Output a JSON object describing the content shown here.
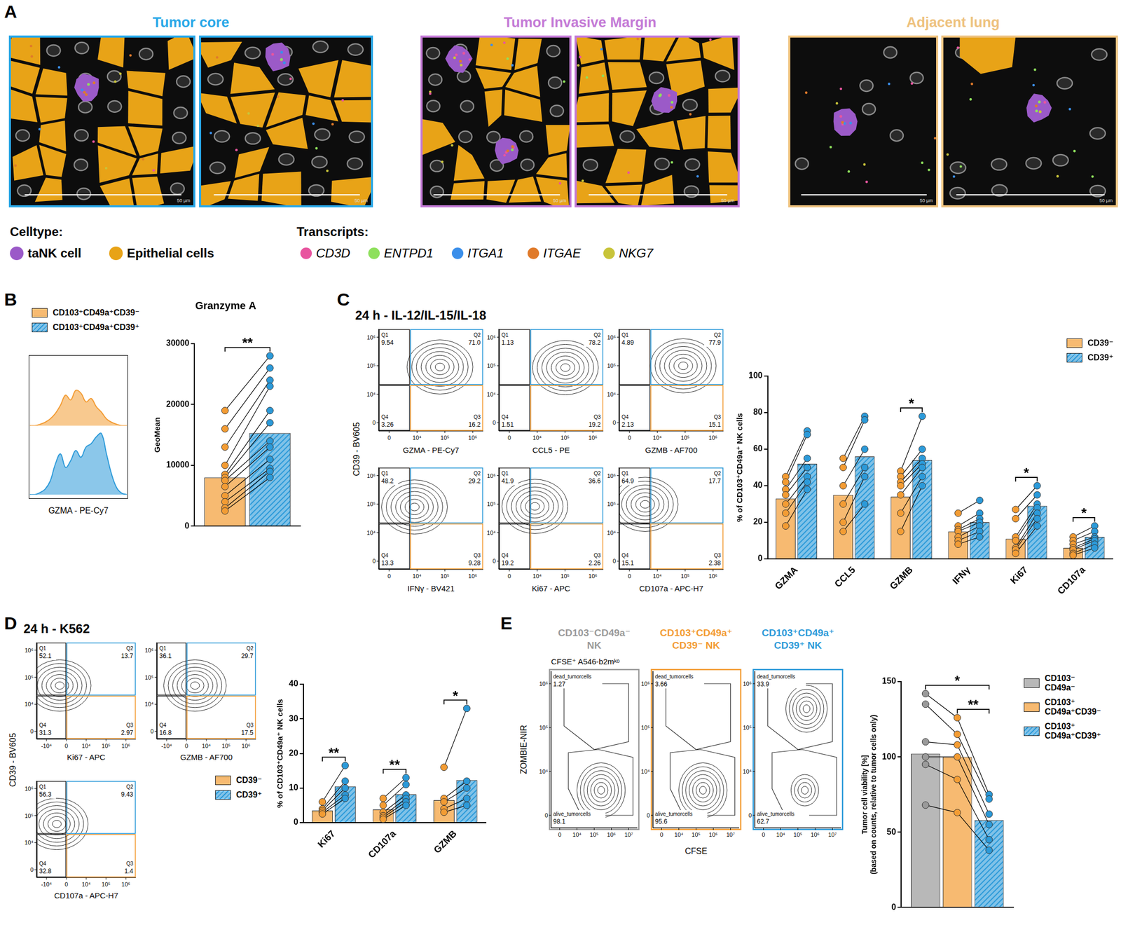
{
  "figure": {
    "A": {
      "regions": [
        {
          "title": "Tumor core",
          "color": "#29A8E8"
        },
        {
          "title": "Tumor Invasive Margin",
          "color": "#C47AD6"
        },
        {
          "title": "Adjacent lung",
          "color": "#EEC27E"
        }
      ],
      "scale_bar": "50 µm",
      "celltype_heading": "Celltype:",
      "celltypes": [
        {
          "name": "taNK cell",
          "color": "#9B5AC8"
        },
        {
          "name": "Epithelial cells",
          "color": "#E8A317"
        }
      ],
      "transcript_heading": "Transcripts:",
      "transcripts": [
        {
          "name": "CD3D",
          "color": "#E8559F"
        },
        {
          "name": "ENTPD1",
          "color": "#8EE05C"
        },
        {
          "name": "ITGA1",
          "color": "#3B8FEA"
        },
        {
          "name": "ITGAE",
          "color": "#E07A2A"
        },
        {
          "name": "NKG7",
          "color": "#C8C43A"
        }
      ]
    },
    "B": {},
    "C": {
      "heading": "24 h - IL-12/IL-15/IL-18",
      "ylabel": "CD39 - BV605",
      "xticks": [
        "0",
        "10⁴",
        "10⁵",
        "10⁶"
      ],
      "yticks": [
        "10⁶",
        "10⁵",
        "10⁴",
        "0"
      ],
      "plots": [
        {
          "xlabel": "GZMA - PE-Cy7",
          "quadrants": [
            {
              "label": "Q1",
              "value": "9.54"
            },
            {
              "label": "Q2",
              "value": "71.0"
            },
            {
              "label": "Q3",
              "value": "16.2"
            },
            {
              "label": "Q4",
              "value": "3.26"
            }
          ]
        },
        {
          "xlabel": "CCL5 - PE",
          "quadrants": [
            {
              "label": "Q1",
              "value": "1.13"
            },
            {
              "label": "Q2",
              "value": "78.2"
            },
            {
              "label": "Q3",
              "value": "19.2"
            },
            {
              "label": "Q4",
              "value": "1.51"
            }
          ]
        },
        {
          "xlabel": "GZMB - AF700",
          "quadrants": [
            {
              "label": "Q1",
              "value": "4.89"
            },
            {
              "label": "Q2",
              "value": "77.9"
            },
            {
              "label": "Q3",
              "value": "15.1"
            },
            {
              "label": "Q4",
              "value": "2.13"
            }
          ]
        },
        {
          "xlabel": "IFNγ - BV421",
          "quadrants": [
            {
              "label": "Q1",
              "value": "48.2"
            },
            {
              "label": "Q2",
              "value": "29.2"
            },
            {
              "label": "Q3",
              "value": "9.28"
            },
            {
              "label": "Q4",
              "value": "13.3"
            }
          ]
        },
        {
          "xlabel": "Ki67 - APC",
          "quadrants": [
            {
              "label": "Q1",
              "value": "41.9"
            },
            {
              "label": "Q2",
              "value": "36.6"
            },
            {
              "label": "Q3",
              "value": "2.26"
            },
            {
              "label": "Q4",
              "value": "19.2"
            }
          ]
        },
        {
          "xlabel": "CD107a - APC-H7",
          "quadrants": [
            {
              "label": "Q1",
              "value": "64.9"
            },
            {
              "label": "Q2",
              "value": "17.7"
            },
            {
              "label": "Q3",
              "value": "2.38"
            },
            {
              "label": "Q4",
              "value": "15.1"
            }
          ]
        }
      ]
    },
    "D": {
      "heading": "24 h - K562",
      "ylabel": "CD39 - BV605",
      "xticks": [
        "-10⁴",
        "0",
        "10⁴",
        "10⁵",
        "10⁶"
      ],
      "yticks": [
        "10⁶",
        "10⁵",
        "10⁴",
        "0"
      ],
      "plots": [
        {
          "xlabel": "Ki67 - APC",
          "quadrants": [
            {
              "label": "Q1",
              "value": "52.1"
            },
            {
              "label": "Q2",
              "value": "13.7"
            },
            {
              "label": "Q3",
              "value": "2.97"
            },
            {
              "label": "Q4",
              "value": "31.3"
            }
          ]
        },
        {
          "xlabel": "GZMB - AF700",
          "quadrants": [
            {
              "label": "Q1",
              "value": "36.1"
            },
            {
              "label": "Q2",
              "value": "29.7"
            },
            {
              "label": "Q3",
              "value": "17.5"
            },
            {
              "label": "Q4",
              "value": "16.8"
            }
          ]
        },
        {
          "xlabel": "CD107a - APC-H7",
          "quadrants": [
            {
              "label": "Q1",
              "value": "56.3"
            },
            {
              "label": "Q2",
              "value": "9.43"
            },
            {
              "label": "Q3",
              "value": "1.4"
            },
            {
              "label": "Q4",
              "value": "32.8"
            }
          ]
        }
      ]
    },
    "E": {
      "sample": "CFSE⁺ A546-b2mᵏᵒ",
      "xlabel": "CFSE",
      "ylabel": "ZOMBIE-NIR",
      "xticks": [
        "0",
        "10⁴",
        "10⁵",
        "10⁶",
        "10⁷"
      ],
      "yticks": [
        "10⁶",
        "10⁵",
        "10⁴",
        "0"
      ],
      "plots": [
        {
          "title": "CD103⁻CD49a⁻ NK",
          "color": "#9A9A9A",
          "gates": [
            {
              "label": "dead_tumorcells",
              "value": "1.27"
            },
            {
              "label": "alive_tumorcells",
              "value": "98.1"
            }
          ]
        },
        {
          "title": "CD103⁺CD49a⁺ CD39⁻ NK",
          "color": "#F39C34",
          "gates": [
            {
              "label": "dead_tumorcells",
              "value": "3.66"
            },
            {
              "label": "alive_tumorcells",
              "value": "95.6"
            }
          ]
        },
        {
          "title": "CD103⁺CD49a⁺ CD39⁺ NK",
          "color": "#2C9AD9",
          "gates": [
            {
              "label": "dead_tumorcells",
              "value": "33.9"
            },
            {
              "label": "alive_tumorcells",
              "value": "62.7"
            }
          ]
        }
      ]
    }
  },
  "chart_data": [
    {
      "panel": "B",
      "type": "area",
      "xlabel": "GZMA - PE-Cy7",
      "categories": [
        null,
        null,
        null,
        null,
        null,
        null,
        null,
        null,
        null,
        null,
        null,
        null,
        null,
        null,
        null,
        null,
        null,
        null,
        null,
        null
      ],
      "series": [
        {
          "color": "#F39C34",
          "values": [
            0,
            0,
            2,
            5,
            10,
            18,
            30,
            45,
            38,
            52,
            48,
            35,
            40,
            28,
            20,
            10,
            5,
            2,
            0,
            0
          ]
        },
        {
          "color": "#2C9AD9",
          "values": [
            0,
            0,
            3,
            8,
            20,
            45,
            60,
            40,
            50,
            65,
            55,
            70,
            75,
            85,
            90,
            60,
            30,
            10,
            2,
            0
          ]
        }
      ],
      "ylim": [
        0,
        100
      ],
      "tick_labels": false
    },
    {
      "panel": "B",
      "type": "bar",
      "title": "Granzyme A",
      "ylabel": "GeoMean",
      "categories": [
        null
      ],
      "series": [
        {
          "name": "CD103⁺CD49a⁺CD39⁻",
          "color": "#F39C34",
          "values": [
            8000
          ],
          "points": [
            [
              19000,
              16000,
              13000,
              10000,
              8500,
              8000,
              7500,
              6500,
              5000,
              4000,
              3000,
              2500
            ]
          ]
        },
        {
          "name": "CD103⁺CD49a⁺CD39⁺",
          "color": "#2C9AD9",
          "values": [
            15300
          ],
          "points": [
            [
              28000,
              26000,
              24000,
              23000,
              19000,
              17000,
              14000,
              13000,
              11000,
              9500,
              9000,
              8000
            ]
          ]
        }
      ],
      "ylim": [
        0,
        30000
      ],
      "yticks": [
        0,
        10000,
        20000,
        30000
      ],
      "grid": false,
      "legend": "top-left",
      "tick_labels": "y",
      "annotations": [
        {
          "category": null,
          "from": "CD103⁺CD49a⁺CD39⁻",
          "to": "CD103⁺CD49a⁺CD39⁺",
          "text": "**"
        }
      ]
    },
    {
      "panel": "C",
      "type": "bar",
      "ylabel": "% of CD103⁺CD49a⁺ NK cells",
      "categories": [
        "GZMA",
        "CCL5",
        "GZMB",
        "IFNγ",
        "Ki67",
        "CD107a"
      ],
      "series": [
        {
          "name": "CD39⁻",
          "color": "#F39C34",
          "values": [
            33,
            35,
            34,
            15,
            11,
            6
          ],
          "points": [
            [
              45,
              42,
              38,
              35,
              30,
              25,
              18
            ],
            [
              55,
              50,
              40,
              30,
              20,
              15
            ],
            [
              48,
              45,
              42,
              40,
              35,
              25,
              15
            ],
            [
              25,
              18,
              16,
              15,
              12,
              10,
              8
            ],
            [
              27,
              22,
              12,
              10,
              6,
              5,
              3
            ],
            [
              12,
              10,
              8,
              6,
              5,
              3,
              2
            ]
          ]
        },
        {
          "name": "CD39⁺",
          "color": "#2C9AD9",
          "values": [
            52,
            56,
            54,
            20,
            29,
            12
          ],
          "points": [
            [
              70,
              68,
              55,
              50,
              45,
              42,
              38
            ],
            [
              78,
              76,
              60,
              50,
              45,
              30
            ],
            [
              78,
              60,
              55,
              52,
              50,
              45,
              40
            ],
            [
              32,
              25,
              22,
              20,
              18,
              15,
              12
            ],
            [
              40,
              35,
              30,
              28,
              25,
              22,
              18
            ],
            [
              18,
              15,
              12,
              11,
              10,
              8,
              6
            ]
          ]
        }
      ],
      "ylim": [
        0,
        100
      ],
      "yticks": [
        0,
        20,
        40,
        60,
        80,
        100
      ],
      "grid": false,
      "legend": "top-right",
      "annotations": [
        {
          "category": "GZMB",
          "from": "CD39⁻",
          "to": "CD39⁺",
          "text": "*"
        },
        {
          "category": "Ki67",
          "from": "CD39⁻",
          "to": "CD39⁺",
          "text": "*"
        },
        {
          "category": "CD107a",
          "from": "CD39⁻",
          "to": "CD39⁺",
          "text": "*"
        }
      ]
    },
    {
      "panel": "D",
      "type": "bar",
      "ylabel": "% of CD103⁺CD49a⁺ NK cells",
      "categories": [
        "Ki67",
        "CD107a",
        "GZMB"
      ],
      "series": [
        {
          "name": "CD39⁻",
          "color": "#F39C34",
          "values": [
            3.5,
            3.8,
            6.5
          ],
          "points": [
            [
              6,
              4,
              3.5,
              3,
              2.5
            ],
            [
              7,
              5,
              3,
              2,
              1.5,
              1
            ],
            [
              16,
              7,
              6,
              4,
              3
            ]
          ]
        },
        {
          "name": "CD39⁺",
          "color": "#2C9AD9",
          "values": [
            10.5,
            8.2,
            12.3
          ],
          "points": [
            [
              16.5,
              12,
              10,
              8,
              7
            ],
            [
              13,
              11,
              8,
              7,
              6,
              5
            ],
            [
              33,
              12,
              10,
              7,
              5
            ]
          ]
        }
      ],
      "ylim": [
        0,
        40
      ],
      "yticks": [
        0,
        10,
        20,
        30,
        40
      ],
      "grid": false,
      "legend": "left",
      "annotations": [
        {
          "category": "Ki67",
          "from": "CD39⁻",
          "to": "CD39⁺",
          "text": "**"
        },
        {
          "category": "CD107a",
          "from": "CD39⁻",
          "to": "CD39⁺",
          "text": "**"
        },
        {
          "category": "GZMB",
          "from": "CD39⁻",
          "to": "CD39⁺",
          "text": "*"
        }
      ]
    },
    {
      "panel": "E",
      "type": "bar",
      "ylabel": [
        "Tumor cell viability [%]",
        "(based on counts, relative to tumor cells only)"
      ],
      "categories": [
        null
      ],
      "series": [
        {
          "name": "CD103⁻ CD49a⁻",
          "color": "#9A9A9A",
          "values": [
            102
          ],
          "points": [
            [
              142,
              135,
              110,
              100,
              95,
              68
            ]
          ]
        },
        {
          "name": "CD103⁺ CD49a⁺CD39⁻",
          "color": "#F39C34",
          "values": [
            100
          ],
          "points": [
            [
              126,
              115,
              108,
              100,
              85,
              63
            ]
          ]
        },
        {
          "name": "CD103⁺ CD49a⁺CD39⁺",
          "color": "#2C9AD9",
          "values": [
            58
          ],
          "points": [
            [
              75,
              72,
              62,
              55,
              45,
              38
            ]
          ]
        }
      ],
      "ylim": [
        0,
        150
      ],
      "yticks": [
        0,
        50,
        100,
        150
      ],
      "grid": false,
      "legend": "right",
      "tick_labels": "y",
      "annotations": [
        {
          "category": null,
          "from": "CD103⁺ CD49a⁺CD39⁻",
          "to": "CD103⁺ CD49a⁺CD39⁺",
          "text": "**"
        },
        {
          "category": null,
          "from": "CD103⁻ CD49a⁻",
          "to": "CD103⁺ CD49a⁺CD39⁺",
          "text": "*"
        }
      ]
    }
  ]
}
